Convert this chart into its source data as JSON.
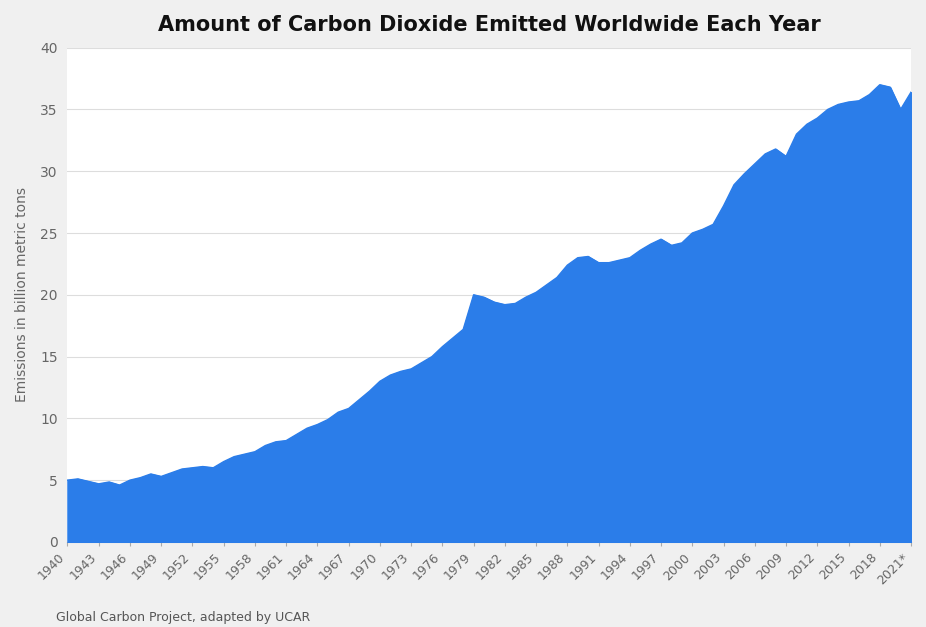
{
  "title": "Amount of Carbon Dioxide Emitted Worldwide Each Year",
  "ylabel": "Emissions in billion metric tons",
  "source": "Global Carbon Project, adapted by UCAR",
  "fill_color": "#2b7de9",
  "background_color": "#f0f0f0",
  "plot_background": "#ffffff",
  "ylim": [
    0,
    40
  ],
  "yticks": [
    0,
    5,
    10,
    15,
    20,
    25,
    30,
    35,
    40
  ],
  "years": [
    1940,
    1941,
    1942,
    1943,
    1944,
    1945,
    1946,
    1947,
    1948,
    1949,
    1950,
    1951,
    1952,
    1953,
    1954,
    1955,
    1956,
    1957,
    1958,
    1959,
    1960,
    1961,
    1962,
    1963,
    1964,
    1965,
    1966,
    1967,
    1968,
    1969,
    1970,
    1971,
    1972,
    1973,
    1974,
    1975,
    1976,
    1977,
    1978,
    1979,
    1980,
    1981,
    1982,
    1983,
    1984,
    1985,
    1986,
    1987,
    1988,
    1989,
    1990,
    1991,
    1992,
    1993,
    1994,
    1995,
    1996,
    1997,
    1998,
    1999,
    2000,
    2001,
    2002,
    2003,
    2004,
    2005,
    2006,
    2007,
    2008,
    2009,
    2010,
    2011,
    2012,
    2013,
    2014,
    2015,
    2016,
    2017,
    2018,
    2019,
    2020,
    2021
  ],
  "values": [
    5.0,
    5.1,
    4.9,
    4.7,
    4.85,
    4.6,
    5.0,
    5.2,
    5.5,
    5.3,
    5.6,
    5.9,
    6.0,
    6.1,
    6.0,
    6.5,
    6.9,
    7.1,
    7.3,
    7.8,
    8.1,
    8.2,
    8.7,
    9.2,
    9.5,
    9.9,
    10.5,
    10.8,
    11.5,
    12.2,
    13.0,
    13.5,
    13.8,
    14.0,
    14.5,
    15.0,
    15.8,
    16.5,
    17.2,
    20.0,
    19.8,
    19.4,
    19.2,
    19.3,
    19.8,
    20.2,
    20.8,
    21.4,
    22.4,
    23.0,
    23.1,
    22.6,
    22.6,
    22.8,
    23.0,
    23.6,
    24.1,
    24.5,
    24.0,
    24.2,
    25.0,
    25.3,
    25.7,
    27.2,
    28.9,
    29.8,
    30.6,
    31.4,
    31.8,
    31.2,
    33.0,
    33.8,
    34.3,
    35.0,
    35.4,
    35.6,
    35.7,
    36.2,
    37.0,
    36.8,
    35.0,
    36.4
  ]
}
